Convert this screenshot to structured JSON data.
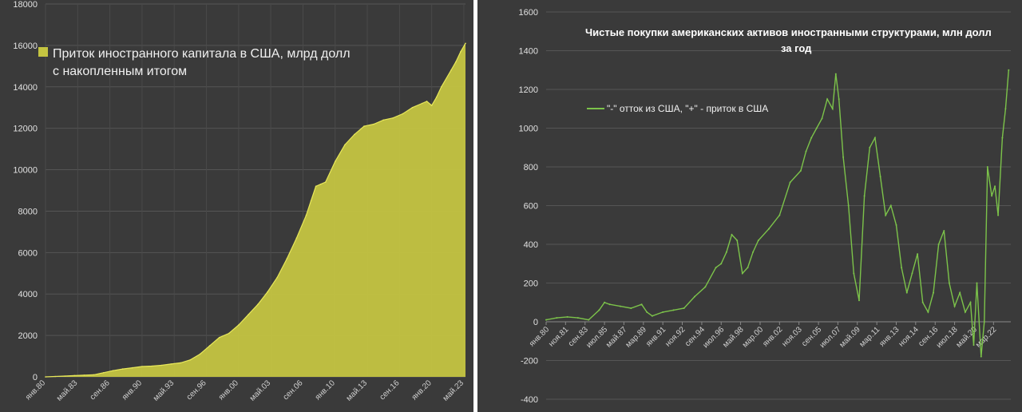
{
  "chart_data": [
    {
      "type": "area",
      "title": "",
      "xlabel": "",
      "ylabel": "",
      "ylim": [
        0,
        18000
      ],
      "yticks": [
        0,
        2000,
        4000,
        6000,
        8000,
        10000,
        12000,
        14000,
        16000,
        18000
      ],
      "xtick_labels": [
        "янв.80",
        "май.83",
        "сен.86",
        "янв.90",
        "май.93",
        "сен.96",
        "янв.00",
        "май.03",
        "сен.06",
        "янв.10",
        "май.13",
        "сен.16",
        "янв.20",
        "май.23"
      ],
      "xtick_years": [
        1980,
        1983.33,
        1986.67,
        1990,
        1993.33,
        1996.67,
        2000,
        2003.33,
        2006.67,
        2010,
        2013.33,
        2016.67,
        2020,
        2023.33
      ],
      "xlim": [
        1980,
        2023.5
      ],
      "grid": true,
      "legend_position": "top-left",
      "color": "#c4c441",
      "series": [
        {
          "name": "Приток иностранного капитала в США, млрд долл с накопленным итогом",
          "x": [
            1980,
            1981,
            1982,
            1983,
            1984,
            1985,
            1986,
            1987,
            1988,
            1989,
            1990,
            1991,
            1992,
            1993,
            1994,
            1995,
            1996,
            1997,
            1998,
            1999,
            2000,
            2001,
            2002,
            2003,
            2004,
            2005,
            2006,
            2007,
            2007.5,
            2008,
            2008.5,
            2009,
            2010,
            2011,
            2012,
            2013,
            2014,
            2015,
            2016,
            2017,
            2018,
            2019,
            2019.5,
            2020,
            2020.5,
            2021,
            2022,
            2022.5,
            2023,
            2023.5
          ],
          "values": [
            0,
            20,
            40,
            60,
            80,
            100,
            200,
            300,
            380,
            440,
            500,
            520,
            560,
            620,
            680,
            820,
            1100,
            1500,
            1900,
            2100,
            2500,
            3000,
            3500,
            4100,
            4800,
            5700,
            6700,
            7800,
            8500,
            9200,
            9300,
            9400,
            10400,
            11200,
            11700,
            12100,
            12200,
            12400,
            12500,
            12700,
            13000,
            13200,
            13300,
            13100,
            13500,
            14000,
            14800,
            15200,
            15700,
            16100
          ]
        }
      ]
    },
    {
      "type": "line",
      "title": "Чистые покупки американских активов иностранными структурами, млн долл за год",
      "xlabel": "",
      "ylabel": "",
      "ylim": [
        -400,
        1600
      ],
      "yticks": [
        -400,
        -200,
        0,
        200,
        400,
        600,
        800,
        1000,
        1200,
        1400,
        1600
      ],
      "xtick_labels": [
        "янв.80",
        "ноя.81",
        "сен.83",
        "июл.85",
        "май.87",
        "мар.89",
        "янв.91",
        "ноя.92",
        "сен.94",
        "июл.96",
        "май.98",
        "мар.00",
        "янв.02",
        "ноя.03",
        "сен.05",
        "июл.07",
        "май.09",
        "мар.11",
        "янв.13",
        "ноя.14",
        "сен.16",
        "июл.18",
        "май.20",
        "мар.22"
      ],
      "xtick_years": [
        1980,
        1981.83,
        1983.67,
        1985.5,
        1987.33,
        1989.17,
        1991,
        1992.83,
        1994.67,
        1996.5,
        1998.33,
        2000.17,
        2002,
        2003.83,
        2005.67,
        2007.5,
        2009.33,
        2011.17,
        2013,
        2014.83,
        2016.67,
        2018.5,
        2020.33,
        2022.17
      ],
      "xlim": [
        1980,
        2023.8
      ],
      "grid": true,
      "legend_position": "top-left",
      "color": "#7cc34a",
      "series": [
        {
          "name": "\"-\" отток из США, \"+\" - приток в США",
          "x": [
            1980,
            1981,
            1982,
            1983,
            1984,
            1985,
            1985.5,
            1986,
            1987,
            1988,
            1989,
            1989.5,
            1990,
            1991,
            1992,
            1993,
            1994,
            1995,
            1996,
            1996.5,
            1997,
            1997.5,
            1998,
            1998.5,
            1999,
            1999.5,
            2000,
            2001,
            2002,
            2003,
            2004,
            2004.5,
            2005,
            2005.5,
            2006,
            2006.5,
            2007,
            2007.3,
            2007.6,
            2008,
            2008.5,
            2009,
            2009.5,
            2010,
            2010.5,
            2011,
            2011.5,
            2012,
            2012.5,
            2013,
            2013.5,
            2014,
            2014.5,
            2015,
            2015.5,
            2016,
            2016.5,
            2017,
            2017.5,
            2018,
            2018.5,
            2019,
            2019.5,
            2020,
            2020.3,
            2020.6,
            2021,
            2021.3,
            2021.6,
            2022,
            2022.3,
            2022.6,
            2023,
            2023.3,
            2023.6
          ],
          "values": [
            10,
            20,
            25,
            20,
            10,
            60,
            100,
            90,
            80,
            70,
            90,
            50,
            30,
            50,
            60,
            70,
            130,
            180,
            280,
            300,
            360,
            450,
            420,
            250,
            280,
            360,
            420,
            480,
            550,
            720,
            780,
            880,
            950,
            1000,
            1050,
            1150,
            1100,
            1280,
            1150,
            850,
            600,
            250,
            110,
            650,
            900,
            950,
            750,
            550,
            600,
            500,
            280,
            150,
            250,
            350,
            100,
            50,
            150,
            400,
            470,
            200,
            80,
            150,
            50,
            100,
            -120,
            200,
            -180,
            0,
            800,
            650,
            700,
            550,
            950,
            1100,
            1300
          ]
        }
      ]
    }
  ]
}
